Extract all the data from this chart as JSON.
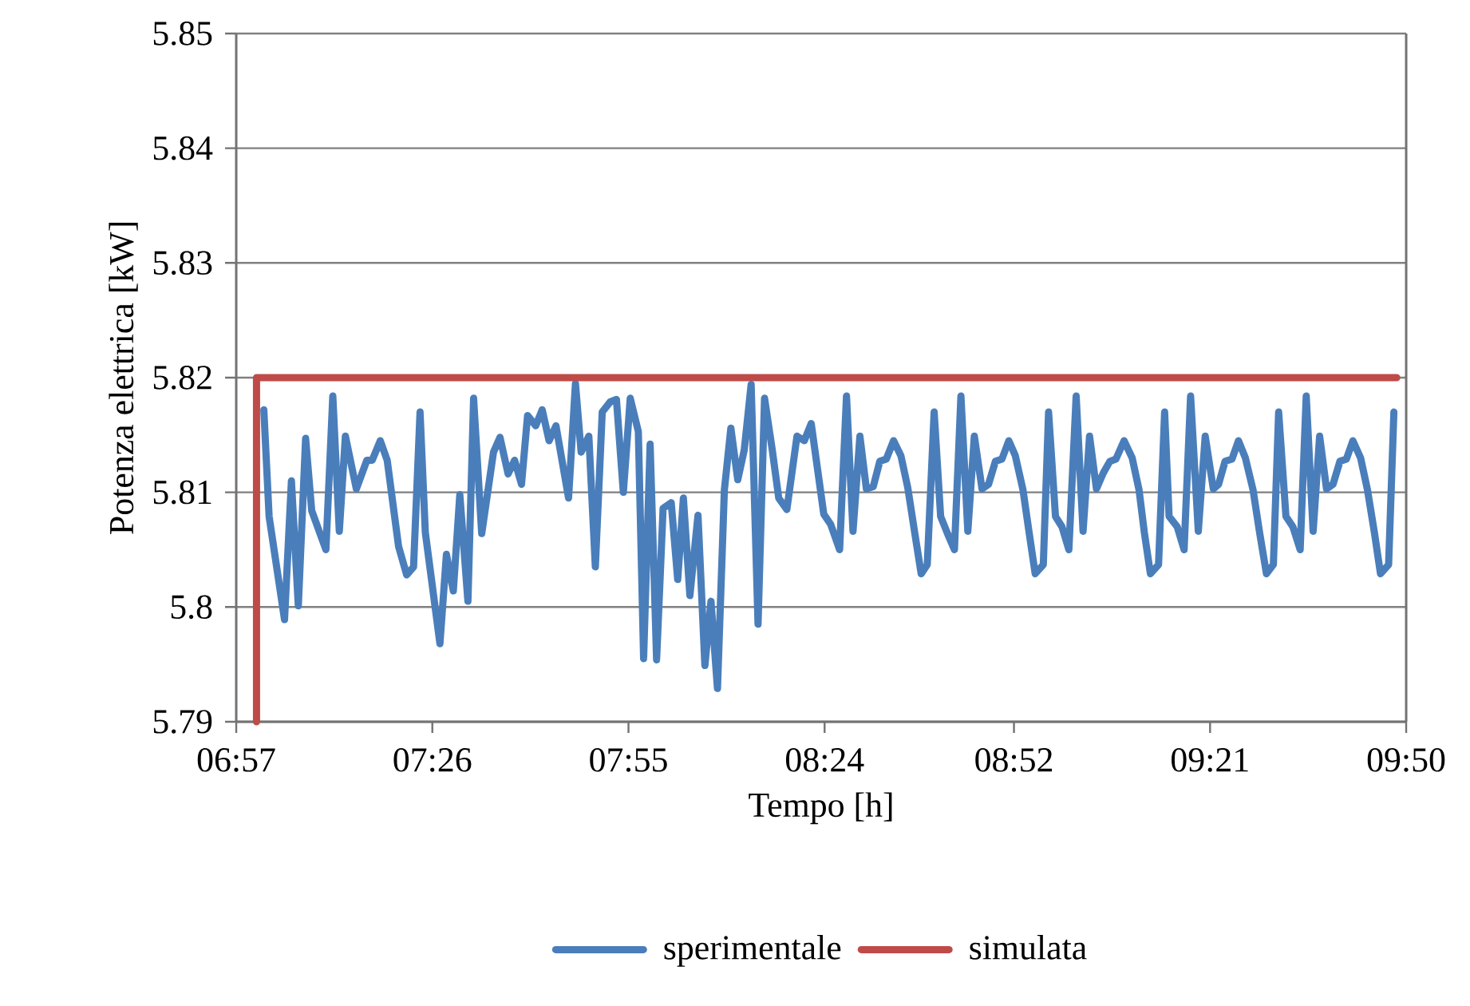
{
  "chart_data": {
    "type": "line",
    "xlabel": "Tempo [h]",
    "ylabel": "Potenza elettrica [kW]",
    "xlim": [
      6.95,
      9.8333
    ],
    "xticks": [
      {
        "value": 6.95,
        "label": "06:57"
      },
      {
        "value": 7.4333,
        "label": "07:26"
      },
      {
        "value": 7.9167,
        "label": "07:55"
      },
      {
        "value": 8.4,
        "label": "08:24"
      },
      {
        "value": 8.8667,
        "label": "08:52"
      },
      {
        "value": 9.35,
        "label": "09:21"
      },
      {
        "value": 9.8333,
        "label": "09:50"
      }
    ],
    "ylim": [
      5.79,
      5.85
    ],
    "yticks": [
      5.79,
      5.8,
      5.81,
      5.82,
      5.83,
      5.84,
      5.85
    ],
    "grid": "y",
    "legend": "bottom",
    "marker": "none",
    "line_style": "solid",
    "series": [
      {
        "name": "sperimentale",
        "color": "#4a7ebb",
        "x": [
          7.018,
          7.031,
          7.069,
          7.086,
          7.103,
          7.121,
          7.136,
          7.171,
          7.188,
          7.204,
          7.219,
          7.246,
          7.272,
          7.285,
          7.305,
          7.322,
          7.35,
          7.37,
          7.387,
          7.403,
          7.416,
          7.452,
          7.468,
          7.485,
          7.501,
          7.521,
          7.535,
          7.555,
          7.584,
          7.6,
          7.62,
          7.636,
          7.653,
          7.668,
          7.688,
          7.704,
          7.721,
          7.738,
          7.769,
          7.786,
          7.8,
          7.819,
          7.835,
          7.852,
          7.872,
          7.887,
          7.904,
          7.921,
          7.941,
          7.954,
          7.97,
          7.986,
          8.002,
          8.022,
          8.038,
          8.052,
          8.068,
          8.088,
          8.105,
          8.12,
          8.136,
          8.153,
          8.169,
          8.186,
          8.202,
          8.219,
          8.236,
          8.252,
          8.271,
          8.287,
          8.307,
          8.332,
          8.35,
          8.367,
          8.398,
          8.415,
          8.437,
          8.454,
          8.47,
          8.487,
          8.503,
          8.52,
          8.536,
          8.552,
          8.57,
          8.588,
          8.605,
          8.622,
          8.638,
          8.653,
          8.67,
          8.686,
          8.703,
          8.72,
          8.736,
          8.753,
          8.769,
          8.788,
          8.804,
          8.821,
          8.837,
          8.854,
          8.87,
          8.889,
          8.904,
          8.919,
          8.939,
          8.952,
          8.969,
          8.985,
          9.002,
          9.02,
          9.037,
          9.053,
          9.07,
          9.087,
          9.103,
          9.118,
          9.138,
          9.158,
          9.175,
          9.188,
          9.203,
          9.223,
          9.238,
          9.249,
          9.269,
          9.286,
          9.302,
          9.321,
          9.338,
          9.358,
          9.371,
          9.387,
          9.404,
          9.42,
          9.437,
          9.456,
          9.472,
          9.489,
          9.506,
          9.519,
          9.537,
          9.554,
          9.572,
          9.587,
          9.604,
          9.62,
          9.637,
          9.653,
          9.67,
          9.686,
          9.702,
          9.721,
          9.738,
          9.755,
          9.77,
          9.79,
          9.803
        ],
        "values": [
          5.8172,
          5.8079,
          5.7989,
          5.811,
          5.8001,
          5.8147,
          5.8084,
          5.805,
          5.8184,
          5.8066,
          5.8149,
          5.8103,
          5.8128,
          5.8128,
          5.8145,
          5.8128,
          5.8053,
          5.8028,
          5.8035,
          5.817,
          5.8065,
          5.7968,
          5.8046,
          5.8014,
          5.8098,
          5.8005,
          5.8182,
          5.8064,
          5.8135,
          5.8148,
          5.8116,
          5.8128,
          5.8107,
          5.8167,
          5.8158,
          5.8172,
          5.8145,
          5.8158,
          5.8095,
          5.8195,
          5.8135,
          5.8149,
          5.8035,
          5.817,
          5.8179,
          5.8181,
          5.81,
          5.8182,
          5.8153,
          5.7955,
          5.8142,
          5.7954,
          5.8086,
          5.8091,
          5.8024,
          5.8095,
          5.801,
          5.808,
          5.7949,
          5.8005,
          5.7929,
          5.8102,
          5.8156,
          5.8111,
          5.8137,
          5.8194,
          5.7985,
          5.8182,
          5.8137,
          5.8095,
          5.8085,
          5.8149,
          5.8145,
          5.816,
          5.8081,
          5.8072,
          5.805,
          5.8184,
          5.8066,
          5.8149,
          5.8103,
          5.8105,
          5.8127,
          5.8129,
          5.8145,
          5.8132,
          5.8104,
          5.8065,
          5.8029,
          5.8037,
          5.817,
          5.8079,
          5.8064,
          5.805,
          5.8184,
          5.8066,
          5.8149,
          5.8103,
          5.8107,
          5.8127,
          5.8129,
          5.8145,
          5.8132,
          5.8102,
          5.8065,
          5.8029,
          5.8037,
          5.817,
          5.8079,
          5.807,
          5.805,
          5.8184,
          5.8066,
          5.8149,
          5.8103,
          5.8117,
          5.8127,
          5.8129,
          5.8145,
          5.813,
          5.8102,
          5.8065,
          5.8029,
          5.8037,
          5.817,
          5.8079,
          5.807,
          5.805,
          5.8184,
          5.8066,
          5.8149,
          5.8103,
          5.8107,
          5.8127,
          5.8129,
          5.8145,
          5.813,
          5.8102,
          5.8065,
          5.8029,
          5.8037,
          5.817,
          5.8079,
          5.807,
          5.805,
          5.8184,
          5.8066,
          5.8149,
          5.8103,
          5.8107,
          5.8127,
          5.8129,
          5.8145,
          5.813,
          5.8102,
          5.8065,
          5.8029,
          5.8037,
          5.817
        ]
      },
      {
        "name": "simulata",
        "color": "#be4b48",
        "x": [
          7.0,
          7.0,
          9.81
        ],
        "values": [
          5.79,
          5.82,
          5.82
        ]
      }
    ]
  }
}
